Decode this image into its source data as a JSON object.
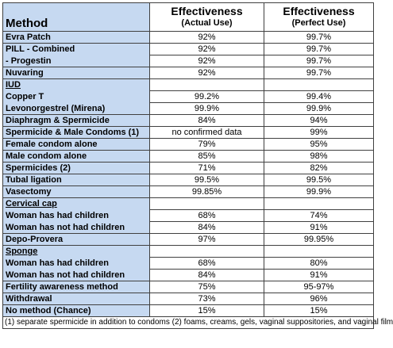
{
  "header": {
    "method": "Method",
    "actual": [
      "Effectiveness",
      "(Actual Use)"
    ],
    "perfect": [
      "Effectiveness",
      "(Perfect Use)"
    ]
  },
  "rows": [
    {
      "method": "Evra Patch",
      "actual": "92%",
      "perfect": "99.7%"
    },
    {
      "items": [
        {
          "method": "PILL - Combined",
          "actual": "92%",
          "perfect": "99.7%"
        },
        {
          "method": "- Progestin",
          "actual": "92%",
          "perfect": "99.7%"
        }
      ]
    },
    {
      "method": "Nuvaring",
      "actual": "92%",
      "perfect": "99.7%"
    },
    {
      "heading": "IUD",
      "items": [
        {
          "method": "Copper T",
          "actual": "99.2%",
          "perfect": "99.4%"
        },
        {
          "method": "Levonorgestrel (Mirena)",
          "actual": "99.9%",
          "perfect": "99.9%"
        }
      ]
    },
    {
      "method": "Diaphragm & Spermicide",
      "actual": "84%",
      "perfect": "94%"
    },
    {
      "method": "Spermicide & Male Condoms (1)",
      "actual": "no confirmed data",
      "perfect": "99%"
    },
    {
      "method": "Female condom alone",
      "actual": "79%",
      "perfect": "95%"
    },
    {
      "method": "Male condom alone",
      "actual": "85%",
      "perfect": "98%"
    },
    {
      "method": "Spermicides (2)",
      "actual": "71%",
      "perfect": "82%"
    },
    {
      "method": "Tubal ligation",
      "actual": "99.5%",
      "perfect": "99.5%"
    },
    {
      "method": "Vasectomy",
      "actual": "99.85%",
      "perfect": "99.9%"
    },
    {
      "heading": "Cervical cap",
      "items": [
        {
          "method": "Woman has had children",
          "actual": "68%",
          "perfect": "74%"
        },
        {
          "method": "Woman has not had children",
          "actual": "84%",
          "perfect": "91%"
        }
      ]
    },
    {
      "method": "Depo-Provera",
      "actual": "97%",
      "perfect": "99.95%"
    },
    {
      "heading": "Sponge",
      "items": [
        {
          "method": "Woman has had children",
          "actual": "68%",
          "perfect": "80%"
        },
        {
          "method": "Woman has not had children",
          "actual": "84%",
          "perfect": "91%"
        }
      ]
    },
    {
      "method": "Fertility awareness method",
      "actual": "75%",
      "perfect": "95-97%"
    },
    {
      "method": "Withdrawal",
      "actual": "73%",
      "perfect": "96%"
    },
    {
      "method": "No method (Chance)",
      "actual": "15%",
      "perfect": "15%"
    }
  ],
  "footnote": "(1) separate spermicide in addition to condoms  (2) foams, creams, gels, vaginal suppositories, and vaginal film"
}
